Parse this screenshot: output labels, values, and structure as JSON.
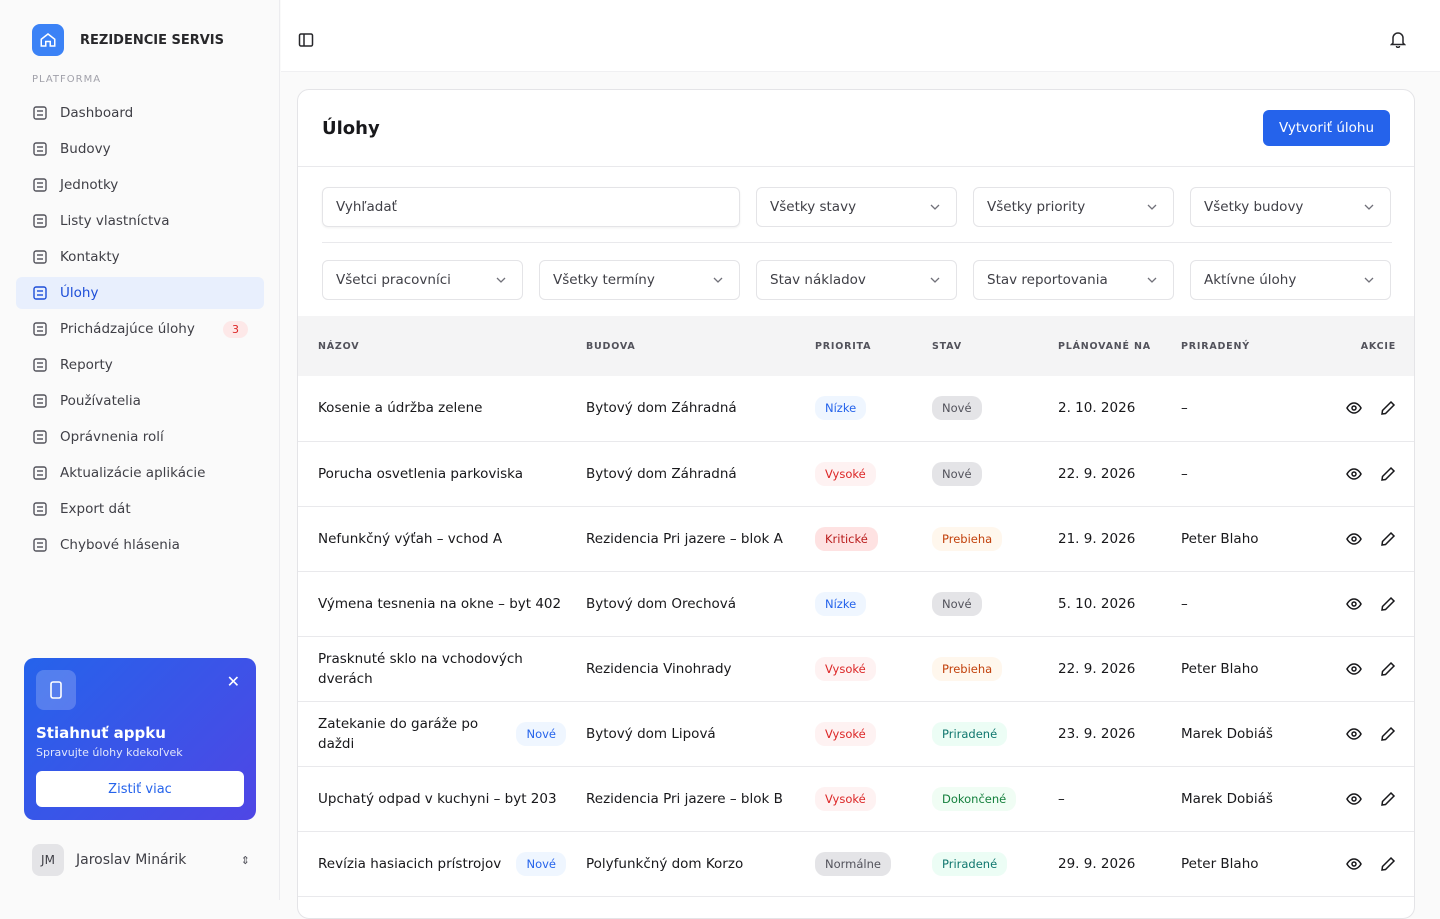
{
  "sidebar": {
    "brand": "REZIDENCIE SERVIS",
    "section": "PLATFORMA",
    "nav": [
      {
        "label": "Dashboard"
      },
      {
        "label": "Budovy"
      },
      {
        "label": "Jednotky"
      },
      {
        "label": "Listy vlastníctva"
      },
      {
        "label": "Kontakty"
      },
      {
        "label": "Úlohy",
        "active": true
      },
      {
        "label": "Prichádzajúce úlohy",
        "badge": 3
      },
      {
        "label": "Reporty"
      },
      {
        "label": "Používatelia"
      },
      {
        "label": "Oprávnenia rolí"
      },
      {
        "label": "Aktualizácie aplikácie"
      },
      {
        "label": "Export dát"
      },
      {
        "label": "Chybové hlásenia"
      }
    ],
    "promo": {
      "title": "Stiahnuť appku",
      "text": "Spravujte úlohy kdekoľvek",
      "button": "Zistiť viac"
    },
    "user": {
      "initials": "JM",
      "name": "Jaroslav Minárik"
    }
  },
  "header": {
    "title": "Úlohy",
    "button": "Vytvoriť úlohu"
  },
  "filters": {
    "search": "Vyhľadať",
    "row1": [
      "Všetky stavy",
      "Všetky priority",
      "Všetky budovy"
    ],
    "row2": [
      "Všetci pracovníci",
      "Všetky termíny",
      "Stav nákladov",
      "Stav reportovania",
      "Aktívne úlohy"
    ]
  },
  "table": {
    "columns": [
      "NÁZOV",
      "BUDOVA",
      "PRIORITA",
      "STAV",
      "PLÁNOVANÉ NA",
      "PRIRADENÝ",
      "AKCIE"
    ],
    "rows": [
      {
        "name": "Kosenie a údržba zelene",
        "building": "Bytový dom Záhradná",
        "priority": {
          "text": "Nízke",
          "color": "#2563eb",
          "bg": "#eff6ff"
        },
        "status": {
          "text": "Nové",
          "color": "#52525b",
          "bg": "#e4e4e7"
        },
        "date": "2. 10. 2026",
        "assignee": "–"
      },
      {
        "name": "Porucha osvetlenia parkoviska",
        "building": "Bytový dom Záhradná",
        "priority": {
          "text": "Vysoké",
          "color": "#dc2626",
          "bg": "#fef2f2"
        },
        "status": {
          "text": "Nové",
          "color": "#52525b",
          "bg": "#e4e4e7"
        },
        "date": "22. 9. 2026",
        "assignee": "–"
      },
      {
        "name": "Nefunkčný výťah – vchod A",
        "building": "Rezidencia Pri jazere – blok A",
        "priority": {
          "text": "Kritické",
          "color": "#b91c1c",
          "bg": "#fee2e2"
        },
        "status": {
          "text": "Prebieha",
          "color": "#c2410c",
          "bg": "#fff7ed"
        },
        "date": "21. 9. 2026",
        "assignee": "Peter Blaho"
      },
      {
        "name": "Výmena tesnenia na okne – byt 402",
        "building": "Bytový dom Orechová",
        "priority": {
          "text": "Nízke",
          "color": "#2563eb",
          "bg": "#eff6ff"
        },
        "status": {
          "text": "Nové",
          "color": "#52525b",
          "bg": "#e4e4e7"
        },
        "date": "5. 10. 2026",
        "assignee": "–"
      },
      {
        "name": "Prasknuté sklo na vchodových dverách",
        "building": "Rezidencia Vinohrady",
        "priority": {
          "text": "Vysoké",
          "color": "#dc2626",
          "bg": "#fef2f2"
        },
        "status": {
          "text": "Prebieha",
          "color": "#c2410c",
          "bg": "#fff7ed"
        },
        "date": "22. 9. 2026",
        "assignee": "Peter Blaho"
      },
      {
        "name": "Zatekanie do garáže po daždi",
        "tag": "Nové",
        "building": "Bytový dom Lipová",
        "priority": {
          "text": "Vysoké",
          "color": "#dc2626",
          "bg": "#fef2f2"
        },
        "status": {
          "text": "Priradené",
          "color": "#0f766e",
          "bg": "#ecfdf5"
        },
        "date": "23. 9. 2026",
        "assignee": "Marek Dobiáš"
      },
      {
        "name": "Upchatý odpad v kuchyni – byt 203",
        "building": "Rezidencia Pri jazere – blok B",
        "priority": {
          "text": "Vysoké",
          "color": "#dc2626",
          "bg": "#fef2f2"
        },
        "status": {
          "text": "Dokončené",
          "color": "#15803d",
          "bg": "#f0fdf4"
        },
        "date": "–",
        "assignee": "Marek Dobiáš"
      },
      {
        "name": "Revízia hasiacich prístrojov",
        "tag": "Nové",
        "building": "Polyfunkčný dom Korzo",
        "priority": {
          "text": "Normálne",
          "color": "#52525b",
          "bg": "#e4e4e7"
        },
        "status": {
          "text": "Priradené",
          "color": "#0f766e",
          "bg": "#ecfdf5"
        },
        "date": "29. 9. 2026",
        "assignee": "Peter Blaho"
      }
    ]
  }
}
